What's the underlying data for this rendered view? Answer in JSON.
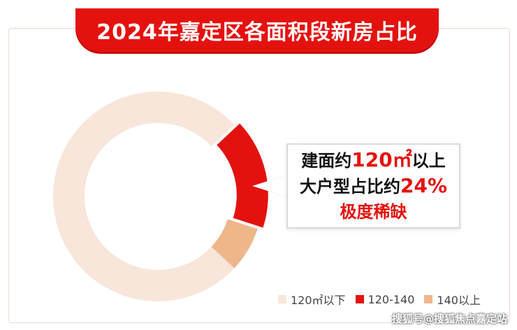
{
  "title": "2024年嘉定区各面积段新房占比",
  "callout": {
    "line1_prefix": "建面约",
    "line1_highlight": "120㎡",
    "line1_suffix": "以上",
    "line2_prefix": "大户型占比约",
    "line2_highlight": "24%",
    "line3": "极度稀缺"
  },
  "chart_data": {
    "type": "pie",
    "donut": true,
    "categories": [
      "120㎡以下",
      "120-140",
      "140以上"
    ],
    "values": [
      76,
      17,
      7
    ],
    "colors": [
      "#f8e6da",
      "#e4120f",
      "#efb68a"
    ],
    "legend_position": "bottom-right"
  },
  "legend": [
    {
      "label": "120㎡以下",
      "color": "#f8e6da"
    },
    {
      "label": "120-140",
      "color": "#e4120f"
    },
    {
      "label": "140以上",
      "color": "#efb68a"
    }
  ],
  "watermark": "搜狐号@搜狐焦点嘉定站"
}
